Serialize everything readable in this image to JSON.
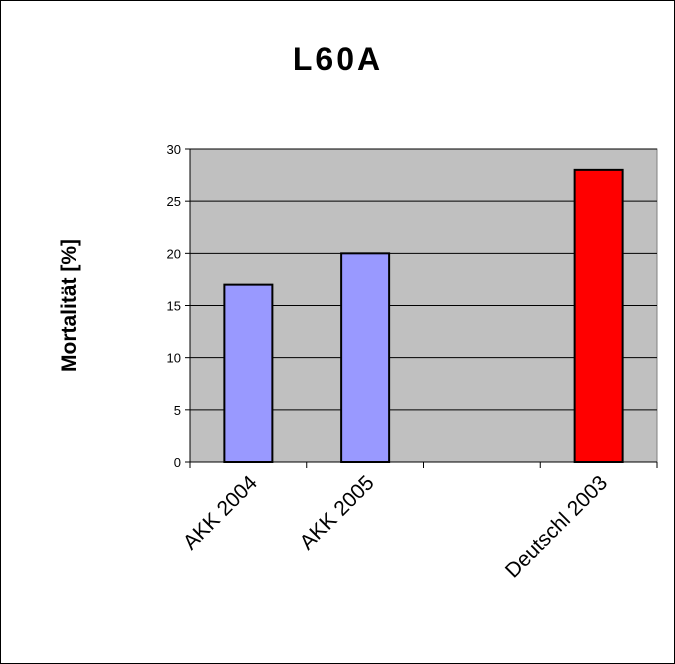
{
  "chart_data": {
    "type": "bar",
    "title": "L60A",
    "xlabel": "",
    "ylabel": "Mortalität [%]",
    "categories": [
      "AKK 2004",
      "AKK 2005",
      "",
      "Deutschl 2003"
    ],
    "values": [
      17,
      20,
      null,
      28
    ],
    "bar_colors": [
      "#9999ff",
      "#9999ff",
      null,
      "#ff0000"
    ],
    "ylim": [
      0,
      30
    ],
    "yticks": [
      0,
      5,
      10,
      15,
      20,
      25,
      30
    ],
    "grid": true,
    "plot_background": "#c0c0c0",
    "legend": "none"
  }
}
